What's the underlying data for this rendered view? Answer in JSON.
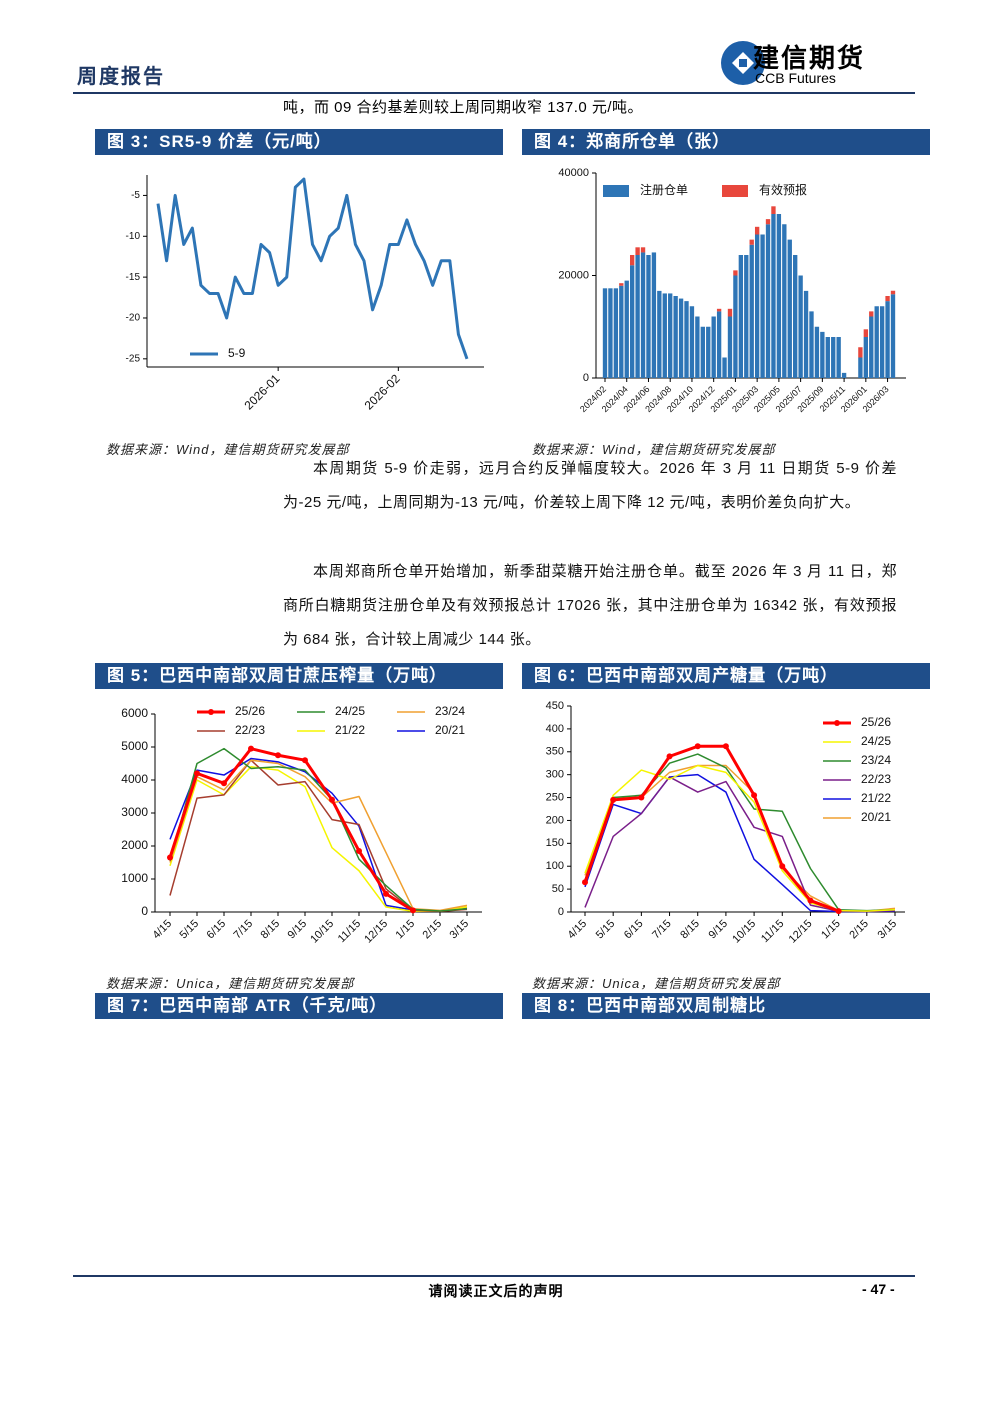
{
  "header": {
    "title": "周度报告",
    "company_cn": "建信期货",
    "company_en": "CCB Futures"
  },
  "intro": "吨，而 09 合约基差则较上周同期收窄 137.0 元/吨。",
  "paragraphs": [
    "本周期货 5-9 价走弱，远月合约反弹幅度较大。2026 年 3 月 11 日期货 5-9 价差为-25 元/吨，上周同期为-13 元/吨，价差较上周下降 12 元/吨，表明价差负向扩大。",
    "本周郑商所仓单开始增加，新季甜菜糖开始注册仓单。截至 2026 年 3 月 11 日，郑商所白糖期货注册仓单及有效预报总计 17026 张，其中注册仓单为 16342 张，有效预报为 684 张，合计较上周减少 144 张。"
  ],
  "empty_figures": [
    {
      "title": "图 7：巴西中南部 ATR（千克/吨）"
    },
    {
      "title": "图 8：巴西中南部双周制糖比"
    }
  ],
  "footer": {
    "disclaimer": "请阅读正文后的声明",
    "page": "- 47 -"
  },
  "chart_data": [
    {
      "type": "line",
      "title": "图 3：SR5-9 价差（元/吨）",
      "source": "数据来源：Wind，建信期货研究发展部",
      "categories": [
        null,
        null,
        null,
        null,
        null,
        null,
        null,
        null,
        null,
        null,
        null,
        null,
        null,
        null,
        "2026-01",
        null,
        null,
        null,
        null,
        null,
        null,
        null,
        null,
        null,
        null,
        null,
        null,
        null,
        "2026-02",
        null,
        null,
        null,
        null,
        null,
        null,
        null,
        null
      ],
      "series": [
        {
          "name": "5-9",
          "color": "#2e75b6",
          "values": [
            -6,
            -13,
            -5,
            -11,
            -9,
            -16,
            -17,
            -17,
            -20,
            -15,
            -17,
            -17,
            -11,
            -12,
            -16,
            -15,
            -4,
            -3,
            -11,
            -13,
            -10,
            -9,
            -5,
            -11,
            -13,
            -19,
            -16,
            -11,
            -11,
            -8,
            -11,
            -13,
            -16,
            -13,
            -13,
            -22,
            -25
          ]
        }
      ],
      "ylim": [
        -26,
        -2.5
      ],
      "yticks": [
        -5,
        -10,
        -15,
        -20,
        -25
      ],
      "legend": "lower left"
    },
    {
      "type": "bar",
      "stacked": true,
      "title": "图 4：郑商所仓单（张）",
      "source": "数据来源：Wind，建信期货研究发展部",
      "categories": [
        "2024/02",
        null,
        null,
        null,
        "2024/04",
        null,
        null,
        null,
        "2024/06",
        null,
        null,
        null,
        "2024/08",
        null,
        null,
        null,
        "2024/10",
        null,
        null,
        null,
        "2024/12",
        null,
        null,
        null,
        "2025/01",
        null,
        null,
        null,
        "2025/03",
        null,
        null,
        null,
        "2025/05",
        null,
        null,
        null,
        "2025/07",
        null,
        null,
        null,
        "2025/09",
        null,
        null,
        null,
        "2025/11",
        null,
        null,
        null,
        "2026/01",
        null,
        null,
        null,
        "2026/03",
        null
      ],
      "series": [
        {
          "name": "注册仓单",
          "color": "#2e75b6",
          "values": [
            17500,
            17500,
            17500,
            18000,
            19000,
            22000,
            24000,
            24500,
            24000,
            24500,
            17000,
            16500,
            16500,
            16000,
            15500,
            15000,
            14000,
            12000,
            10000,
            10000,
            12000,
            13000,
            4000,
            12000,
            20000,
            24000,
            24000,
            26000,
            28000,
            28000,
            30000,
            32000,
            32000,
            30000,
            27000,
            24000,
            20000,
            17000,
            13000,
            10000,
            9000,
            8000,
            8000,
            8000,
            1000,
            0,
            0,
            4000,
            8000,
            12000,
            14000,
            14000,
            15000,
            16342
          ]
        },
        {
          "name": "有效预报",
          "color": "#e8473c",
          "values": [
            0,
            0,
            0,
            500,
            0,
            2000,
            1500,
            1000,
            0,
            0,
            0,
            0,
            0,
            0,
            0,
            0,
            0,
            0,
            0,
            0,
            0,
            500,
            0,
            1500,
            1000,
            0,
            0,
            1000,
            1500,
            0,
            1000,
            1500,
            0,
            0,
            0,
            0,
            0,
            0,
            0,
            0,
            0,
            0,
            0,
            0,
            0,
            0,
            0,
            2000,
            1500,
            1000,
            0,
            0,
            1000,
            684
          ]
        }
      ],
      "ylim": [
        0,
        40000
      ],
      "yticks": [
        0,
        20000,
        40000
      ],
      "legend": "upper left"
    },
    {
      "type": "line",
      "title": "图 5：巴西中南部双周甘蔗压榨量（万吨）",
      "source": "数据来源：Unica，建信期货研究发展部",
      "categories": [
        "4/15",
        "5/15",
        "6/15",
        "7/15",
        "8/15",
        "9/15",
        "10/15",
        "11/15",
        "12/15",
        "1/15",
        "2/15",
        "3/15"
      ],
      "series": [
        {
          "name": "25/26",
          "color": "#ff0000",
          "marker": "o",
          "values": [
            1650,
            4200,
            3900,
            4950,
            4750,
            4600,
            3400,
            1850,
            550,
            50,
            null,
            null
          ]
        },
        {
          "name": "24/25",
          "color": "#2e8b2e",
          "values": [
            1550,
            4500,
            4950,
            4350,
            4400,
            4300,
            3400,
            1600,
            800,
            80,
            30,
            100
          ]
        },
        {
          "name": "23/24",
          "color": "#f0a030",
          "values": [
            1500,
            4100,
            3700,
            4600,
            4500,
            4100,
            3300,
            3500,
            1800,
            100,
            50,
            200
          ]
        },
        {
          "name": "22/23",
          "color": "#a63d2e",
          "values": [
            500,
            3450,
            3550,
            4600,
            3850,
            3950,
            2800,
            2650,
            700,
            50,
            20,
            80
          ]
        },
        {
          "name": "21/22",
          "color": "#f5f500",
          "values": [
            1400,
            4000,
            3550,
            4400,
            4300,
            3800,
            1950,
            1250,
            150,
            20,
            30,
            150
          ]
        },
        {
          "name": "20/21",
          "color": "#1010e0",
          "values": [
            2200,
            4300,
            4150,
            4650,
            4550,
            4250,
            3600,
            2600,
            200,
            60,
            30,
            120
          ]
        }
      ],
      "ylim": [
        0,
        6000
      ],
      "yticks": [
        0,
        1000,
        2000,
        3000,
        4000,
        5000,
        6000
      ],
      "legend": "upper center"
    },
    {
      "type": "line",
      "title": "图 6：巴西中南部双周产糖量（万吨）",
      "source": "数据来源：Unica，建信期货研究发展部",
      "categories": [
        "4/15",
        "5/15",
        "6/15",
        "7/15",
        "8/15",
        "9/15",
        "10/15",
        "11/15",
        "12/15",
        "1/15",
        "2/15",
        "3/15"
      ],
      "series": [
        {
          "name": "25/26",
          "color": "#ff0000",
          "marker": "o",
          "values": [
            65,
            245,
            250,
            340,
            362,
            362,
            255,
            100,
            25,
            2,
            null,
            null
          ]
        },
        {
          "name": "24/25",
          "color": "#f5f500",
          "values": [
            85,
            255,
            310,
            290,
            320,
            305,
            240,
            90,
            20,
            3,
            2,
            5
          ]
        },
        {
          "name": "23/24",
          "color": "#2e8b2e",
          "values": [
            70,
            250,
            255,
            325,
            345,
            315,
            225,
            220,
            95,
            5,
            3,
            5
          ]
        },
        {
          "name": "22/23",
          "color": "#7a1f8a",
          "values": [
            10,
            165,
            215,
            295,
            262,
            285,
            185,
            165,
            15,
            2,
            1,
            3
          ]
        },
        {
          "name": "21/22",
          "color": "#1010e0",
          "values": [
            55,
            235,
            215,
            295,
            300,
            262,
            115,
            60,
            3,
            1,
            1,
            2
          ]
        },
        {
          "name": "20/21",
          "color": "#f0a030",
          "values": [
            80,
            250,
            250,
            305,
            320,
            320,
            260,
            95,
            35,
            3,
            2,
            8
          ]
        }
      ],
      "ylim": [
        0,
        450
      ],
      "yticks": [
        0,
        50,
        100,
        150,
        200,
        250,
        300,
        350,
        400,
        450
      ],
      "legend": "upper right"
    }
  ]
}
